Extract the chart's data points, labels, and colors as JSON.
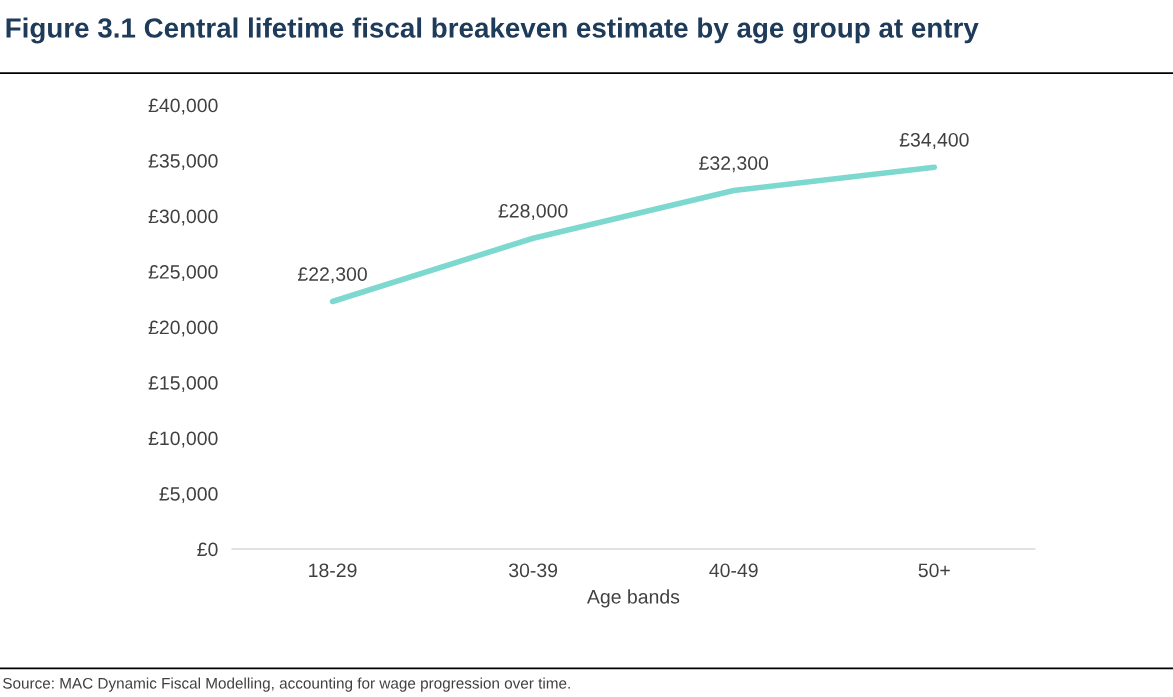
{
  "chart_data": {
    "type": "line",
    "title": "Figure 3.1 Central lifetime fiscal breakeven estimate by age group at entry",
    "xlabel": "Age bands",
    "categories": [
      "18-29",
      "30-39",
      "40-49",
      "50+"
    ],
    "series": [
      {
        "color": "#7dd8cf",
        "values": [
          22300,
          28000,
          32300,
          34400
        ]
      }
    ],
    "value_labels": [
      "£22,300",
      "£28,000",
      "£32,300",
      "£34,400"
    ],
    "ylim": [
      0,
      40000
    ],
    "yticks": [
      {
        "value": 0,
        "label": "£0"
      },
      {
        "value": 5000,
        "label": "£5,000"
      },
      {
        "value": 10000,
        "label": "£10,000"
      },
      {
        "value": 15000,
        "label": "£15,000"
      },
      {
        "value": 20000,
        "label": "£20,000"
      },
      {
        "value": 25000,
        "label": "£25,000"
      },
      {
        "value": 30000,
        "label": "£30,000"
      },
      {
        "value": 35000,
        "label": "£35,000"
      },
      {
        "value": 40000,
        "label": "£40,000"
      }
    ],
    "grid": false,
    "legend": false,
    "marker": "none",
    "line_style": "solid",
    "annotations": [
      "Source: MAC Dynamic Fiscal Modelling, accounting for wage progression over time."
    ]
  }
}
